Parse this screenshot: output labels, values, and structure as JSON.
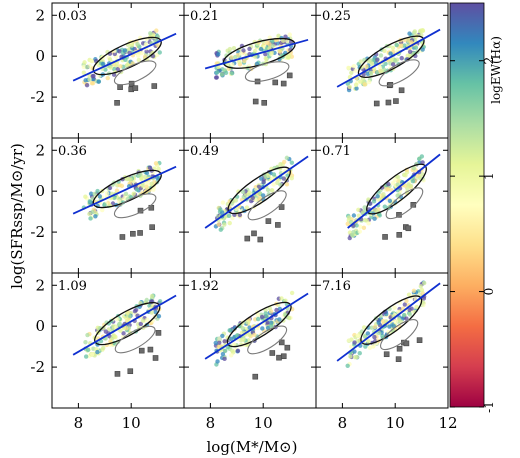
{
  "chart_data": {
    "type": "scatter",
    "xlabel": "log(M*/M⊙)",
    "ylabel": "log(SFRssp/M⊙/yr)",
    "xlim": [
      7,
      12
    ],
    "ylim": [
      -4,
      2.6
    ],
    "xticks": [
      "8",
      "10",
      "12"
    ],
    "yticks": [
      "2",
      "0",
      "-2"
    ],
    "colorbar": {
      "label": "logEW(Hα)",
      "range": [
        -1,
        2.5
      ],
      "ticks": [
        "2",
        "1",
        "0",
        "-1"
      ],
      "colormap": "Spectral"
    },
    "panels": [
      {
        "label": "0.03",
        "fit": [
          [
            7.8,
            -1.2
          ],
          [
            11.7,
            1.1
          ]
        ]
      },
      {
        "label": "0.21",
        "fit": [
          [
            7.8,
            -0.6
          ],
          [
            11.7,
            0.8
          ]
        ]
      },
      {
        "label": "0.25",
        "fit": [
          [
            7.8,
            -1.5
          ],
          [
            11.7,
            1.3
          ]
        ]
      },
      {
        "label": "0.36",
        "fit": [
          [
            7.8,
            -1.1
          ],
          [
            11.7,
            1.2
          ]
        ]
      },
      {
        "label": "0.49",
        "fit": [
          [
            7.8,
            -1.8
          ],
          [
            11.7,
            1.7
          ]
        ]
      },
      {
        "label": "0.71",
        "fit": [
          [
            8.2,
            -1.8
          ],
          [
            11.7,
            1.8
          ]
        ]
      },
      {
        "label": "1.09",
        "fit": [
          [
            7.8,
            -1.4
          ],
          [
            11.7,
            1.5
          ]
        ]
      },
      {
        "label": "1.92",
        "fit": [
          [
            7.8,
            -1.6
          ],
          [
            11.7,
            1.6
          ]
        ]
      },
      {
        "label": "7.16",
        "fit": [
          [
            7.8,
            -1.7
          ],
          [
            11.7,
            2.1
          ]
        ]
      }
    ]
  }
}
